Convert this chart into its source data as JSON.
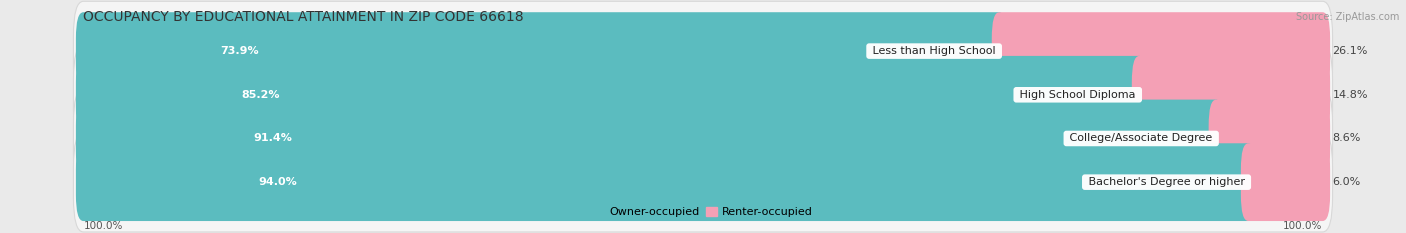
{
  "title": "OCCUPANCY BY EDUCATIONAL ATTAINMENT IN ZIP CODE 66618",
  "source": "Source: ZipAtlas.com",
  "categories": [
    "Less than High School",
    "High School Diploma",
    "College/Associate Degree",
    "Bachelor's Degree or higher"
  ],
  "owner_pct": [
    73.9,
    85.2,
    91.4,
    94.0
  ],
  "renter_pct": [
    26.1,
    14.8,
    8.6,
    6.0
  ],
  "owner_color": "#5bbcbf",
  "renter_color": "#f4a0b5",
  "bg_color": "#eaeaea",
  "bar_bg_color": "#f5f5f5",
  "bar_border_color": "#d8d8d8",
  "title_fontsize": 10,
  "label_fontsize": 8,
  "pct_fontsize": 8,
  "source_fontsize": 7,
  "tick_fontsize": 7.5,
  "axis_label_left": "100.0%",
  "axis_label_right": "100.0%",
  "legend_owner": "Owner-occupied",
  "legend_renter": "Renter-occupied"
}
